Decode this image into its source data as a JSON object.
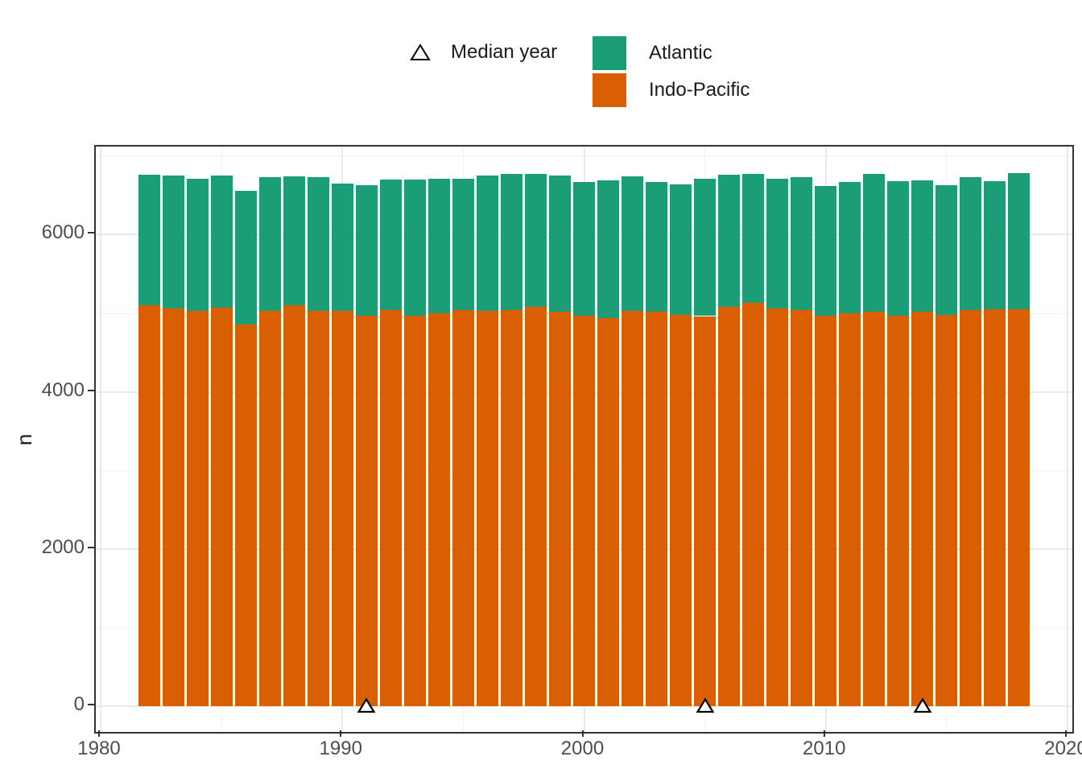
{
  "figure": {
    "background": "#ffffff"
  },
  "legend": {
    "median_label": "Median year",
    "median_symbol": "open-triangle",
    "items": [
      {
        "label": "Atlantic",
        "color": "#1B9E77"
      },
      {
        "label": "Indo-Pacific",
        "color": "#D95F02"
      }
    ]
  },
  "axes": {
    "y_title": "n",
    "x_ticks": [
      1980,
      1990,
      2000,
      2010,
      2020
    ],
    "x_minor_ticks": [
      1985,
      1995,
      2005,
      2015
    ],
    "y_ticks": [
      0,
      2000,
      4000,
      6000
    ],
    "y_minor_ticks": [
      1000,
      3000,
      5000,
      7000
    ],
    "tick_label_color": "#4d4d4d",
    "panel_border_color": "#333333",
    "grid_major_color": "#e9e9e9",
    "grid_minor_color": "#f2f2f2"
  },
  "chart_data": {
    "type": "bar",
    "stacked": true,
    "title": "",
    "xlabel": "",
    "ylabel": "n",
    "legend_position": "top",
    "grid": true,
    "xlim": [
      1979.8,
      2020.2
    ],
    "ylim": [
      -325,
      7121
    ],
    "categories": [
      1982,
      1983,
      1984,
      1985,
      1986,
      1987,
      1988,
      1989,
      1990,
      1991,
      1992,
      1993,
      1994,
      1995,
      1996,
      1997,
      1998,
      1999,
      2000,
      2001,
      2002,
      2003,
      2004,
      2005,
      2006,
      2007,
      2008,
      2009,
      2010,
      2011,
      2012,
      2013,
      2014,
      2015,
      2016,
      2017,
      2018
    ],
    "series": [
      {
        "name": "Indo-Pacific",
        "color": "#D95F02",
        "values": [
          5100,
          5060,
          5035,
          5070,
          4860,
          5035,
          5100,
          5030,
          5035,
          4975,
          5040,
          4975,
          5000,
          5040,
          5030,
          5040,
          5085,
          5025,
          4975,
          4940,
          5030,
          5020,
          4985,
          4965,
          5085,
          5130,
          5060,
          5040,
          4975,
          5000,
          5025,
          4975,
          5025,
          4985,
          5040,
          5050,
          5050
        ]
      },
      {
        "name": "Atlantic",
        "color": "#1B9E77",
        "values": [
          1660,
          1695,
          1680,
          1685,
          1700,
          1700,
          1640,
          1700,
          1615,
          1655,
          1665,
          1725,
          1715,
          1670,
          1720,
          1730,
          1685,
          1725,
          1700,
          1750,
          1715,
          1655,
          1655,
          1750,
          1675,
          1640,
          1650,
          1695,
          1640,
          1675,
          1745,
          1710,
          1665,
          1640,
          1695,
          1630,
          1735
        ]
      }
    ],
    "median_years": [
      1991,
      2005,
      2014
    ],
    "median_marker": {
      "shape": "open-triangle-up",
      "fill": "#ffffff",
      "stroke": "#000000",
      "y_value": 0
    }
  }
}
